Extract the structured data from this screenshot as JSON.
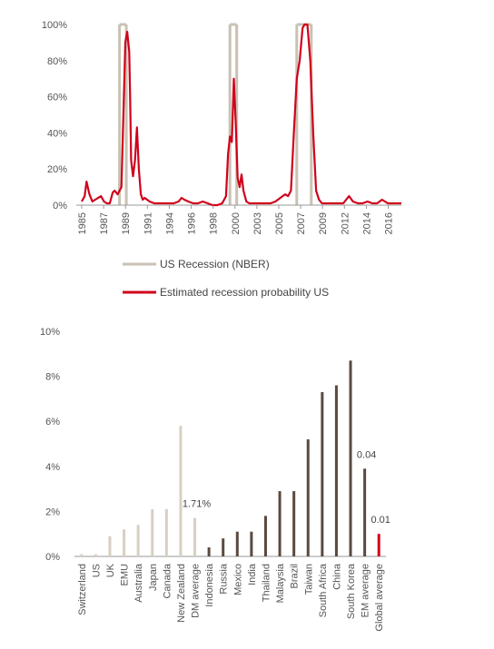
{
  "colors": {
    "recession": "#c9c1b3",
    "probability": "#d0021b",
    "dm_bar": "#d8cfc2",
    "em_bar": "#5a4a40",
    "global_bar": "#d0021b",
    "axis": "#999999"
  },
  "chart_data": [
    {
      "type": "line",
      "x_ticks": [
        "1985",
        "1987",
        "1989",
        "1991",
        "1994",
        "1996",
        "1998",
        "2000",
        "2003",
        "2005",
        "2007",
        "2009",
        "2012",
        "2014",
        "2016"
      ],
      "y_ticks": [
        "0%",
        "20%",
        "40%",
        "60%",
        "80%",
        "100%"
      ],
      "ylim": [
        0,
        100
      ],
      "xlim": [
        1985,
        2018
      ],
      "recession_periods": [
        [
          1988.9,
          1989.6
        ],
        [
          2000.3,
          2001.0
        ],
        [
          2007.2,
          2008.7
        ]
      ],
      "series": [
        {
          "name": "US Recession (NBER)",
          "kind": "band"
        },
        {
          "name": "Estimated recession probability US",
          "x": [
            1985.0,
            1985.3,
            1985.5,
            1985.8,
            1986.1,
            1986.4,
            1986.7,
            1987.0,
            1987.3,
            1987.6,
            1987.9,
            1988.2,
            1988.4,
            1988.7,
            1988.9,
            1989.1,
            1989.3,
            1989.5,
            1989.7,
            1989.9,
            1990.0,
            1990.1,
            1990.3,
            1990.5,
            1990.7,
            1990.9,
            1991.1,
            1991.3,
            1991.5,
            1992.0,
            1992.5,
            1993.0,
            1993.5,
            1994.0,
            1994.5,
            1995.0,
            1995.3,
            1995.6,
            1996.0,
            1996.5,
            1997.0,
            1997.5,
            1998.0,
            1998.5,
            1999.0,
            1999.5,
            1999.9,
            2000.1,
            2000.3,
            2000.5,
            2000.7,
            2000.9,
            2001.1,
            2001.3,
            2001.5,
            2001.7,
            2002.0,
            2002.3,
            2002.6,
            2003.0,
            2003.5,
            2004.0,
            2004.5,
            2005.0,
            2005.5,
            2006.0,
            2006.3,
            2006.6,
            2006.9,
            2007.2,
            2007.5,
            2007.8,
            2008.0,
            2008.3,
            2008.6,
            2008.9,
            2009.2,
            2009.5,
            2009.8,
            2010.2,
            2010.6,
            2011.0,
            2011.5,
            2012.0,
            2012.3,
            2012.6,
            2013.0,
            2013.5,
            2014.0,
            2014.5,
            2015.0,
            2015.5,
            2016.0,
            2016.3,
            2016.6,
            2017.0,
            2017.5,
            2018.0
          ],
          "values": [
            2,
            5,
            13,
            6,
            2,
            3,
            4,
            5,
            2,
            1,
            1,
            7,
            8,
            6,
            8,
            10,
            50,
            90,
            96,
            85,
            60,
            25,
            16,
            25,
            43,
            20,
            6,
            3,
            4,
            2,
            1,
            1,
            1,
            1,
            1,
            2,
            4,
            3,
            2,
            1,
            1,
            2,
            1,
            0,
            0,
            1,
            5,
            28,
            38,
            35,
            70,
            45,
            15,
            10,
            17,
            8,
            2,
            1,
            1,
            1,
            1,
            1,
            1,
            2,
            4,
            6,
            5,
            8,
            40,
            70,
            80,
            98,
            100,
            100,
            80,
            40,
            8,
            3,
            1,
            1,
            1,
            1,
            1,
            1,
            3,
            5,
            2,
            1,
            1,
            2,
            1,
            1,
            3,
            2,
            1,
            1,
            1,
            1
          ]
        }
      ],
      "legend": "bottom"
    },
    {
      "type": "bar",
      "categories": [
        "Switzerland",
        "US",
        "UK",
        "EMU",
        "Australia",
        "Japan",
        "Canada",
        "New Zealand",
        "DM average",
        "Indonesia",
        "Russia",
        "Mexico",
        "India",
        "Thailand",
        "Malaysia",
        "Brazil",
        "Taiwan",
        "South Africa",
        "China",
        "South Korea",
        "EM average",
        "Global average"
      ],
      "values": [
        0.1,
        0.1,
        0.9,
        1.2,
        1.4,
        2.1,
        2.1,
        5.8,
        1.71,
        0.4,
        0.8,
        1.1,
        1.1,
        1.8,
        2.9,
        2.9,
        5.2,
        7.3,
        7.6,
        8.7,
        3.9,
        1.0
      ],
      "groups": [
        "DM",
        "DM",
        "DM",
        "DM",
        "DM",
        "DM",
        "DM",
        "DM",
        "DM",
        "EM",
        "EM",
        "EM",
        "EM",
        "EM",
        "EM",
        "EM",
        "EM",
        "EM",
        "EM",
        "EM",
        "EM",
        "Global"
      ],
      "y_ticks": [
        "0%",
        "2%",
        "4%",
        "6%",
        "8%",
        "10%"
      ],
      "ylim": [
        0,
        10
      ],
      "annotations": [
        {
          "category": "DM average",
          "text": "1.71%"
        },
        {
          "category": "EM average",
          "text": "0.04"
        },
        {
          "category": "Global average",
          "text": "0.01"
        }
      ]
    }
  ]
}
